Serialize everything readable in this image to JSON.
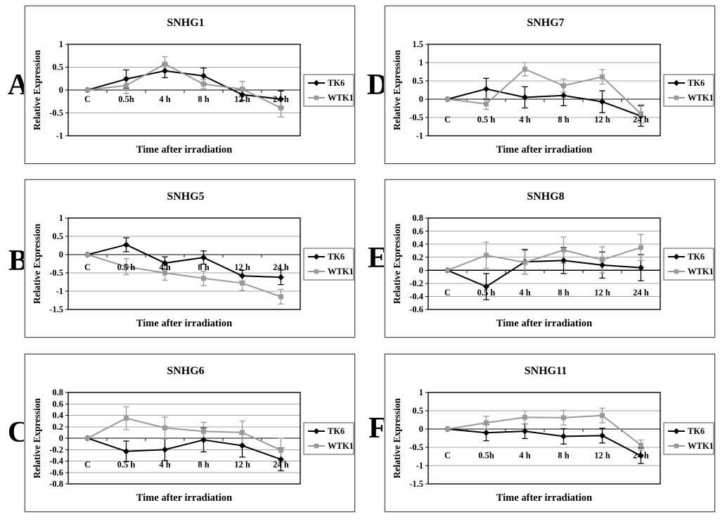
{
  "page": {
    "background": "#ffffff"
  },
  "colors": {
    "tk6": "#000000",
    "wtk1": "#999999",
    "gridline": "#a3a3a3",
    "zero_axis": "#000000",
    "plot_border": "#000000",
    "panel_border": "#4a4a4a",
    "text": "#000000"
  },
  "chart_data": [
    {
      "id": "snhg1",
      "panel_letter": "A",
      "type": "line",
      "title": "SNHG1",
      "xlabel": "Time after irradiation",
      "ylabel": "Relative Expression",
      "categories": [
        "C",
        "0.5h",
        "4 h",
        "8 h",
        "12 h",
        "24 h"
      ],
      "ylim": [
        -1,
        1
      ],
      "yticks": [
        1,
        0.5,
        0,
        -0.5,
        -1
      ],
      "grid": true,
      "legend_position": "right",
      "category_label_y": -0.2,
      "series": [
        {
          "name": "TK6",
          "color": "#000000",
          "marker": "diamond",
          "values": [
            0,
            0.24,
            0.42,
            0.31,
            -0.1,
            -0.2
          ],
          "errors": [
            0,
            0.2,
            0.15,
            0.17,
            0.13,
            0.18
          ]
        },
        {
          "name": "WTK1",
          "color": "#999999",
          "marker": "square",
          "values": [
            0,
            0.1,
            0.57,
            0.13,
            0.02,
            -0.39
          ],
          "errors": [
            0,
            0.18,
            0.16,
            0.1,
            0.17,
            0.2
          ]
        }
      ]
    },
    {
      "id": "snhg5",
      "panel_letter": "B",
      "type": "line",
      "title": "SNHG5",
      "xlabel": "Time after irradiation",
      "ylabel": "Relative Expression",
      "categories": [
        "C",
        "0.5 h",
        "4 h",
        "8 h",
        "12 h",
        "24 h"
      ],
      "ylim": [
        -1.5,
        1
      ],
      "yticks": [
        1,
        0.5,
        0,
        -0.5,
        -1,
        -1.5
      ],
      "grid": true,
      "legend_position": "right",
      "category_label_y": -0.34,
      "series": [
        {
          "name": "TK6",
          "color": "#000000",
          "marker": "diamond",
          "values": [
            0,
            0.27,
            -0.23,
            -0.08,
            -0.58,
            -0.62
          ],
          "errors": [
            0,
            0.19,
            0.17,
            0.18,
            0.15,
            0.2
          ]
        },
        {
          "name": "WTK1",
          "color": "#999999",
          "marker": "square",
          "values": [
            0,
            -0.33,
            -0.5,
            -0.65,
            -0.78,
            -1.15
          ],
          "errors": [
            0,
            0.22,
            0.2,
            0.2,
            0.2,
            0.2
          ]
        }
      ]
    },
    {
      "id": "snhg6",
      "panel_letter": "C",
      "type": "line",
      "title": "SNHG6",
      "xlabel": "Time after irradiation",
      "ylabel": "Relative Expression",
      "categories": [
        "C",
        "0.5 h",
        "4 h",
        "8 h",
        "12 h",
        "24 h"
      ],
      "ylim": [
        -0.8,
        0.8
      ],
      "yticks": [
        0.8,
        0.6,
        0.4,
        0.2,
        0,
        -0.2,
        -0.4,
        -0.6,
        -0.8
      ],
      "grid": true,
      "legend_position": "right",
      "category_label_y": -0.46,
      "series": [
        {
          "name": "TK6",
          "color": "#000000",
          "marker": "diamond",
          "values": [
            0,
            -0.23,
            -0.2,
            -0.03,
            -0.13,
            -0.37
          ],
          "errors": [
            0,
            0.18,
            0.19,
            0.21,
            0.2,
            0.2
          ]
        },
        {
          "name": "WTK1",
          "color": "#999999",
          "marker": "square",
          "values": [
            0,
            0.35,
            0.18,
            0.12,
            0.1,
            -0.21
          ],
          "errors": [
            0,
            0.2,
            0.19,
            0.16,
            0.2,
            0.21
          ]
        }
      ]
    },
    {
      "id": "snhg7",
      "panel_letter": "D",
      "type": "line",
      "title": "SNHG7",
      "xlabel": "Time after irradiation",
      "ylabel": "Relative Expression",
      "categories": [
        "C",
        "0.5 h",
        "4 h",
        "8 h",
        "12 h",
        "24 h"
      ],
      "ylim": [
        -1,
        1.5
      ],
      "yticks": [
        1.5,
        1,
        0.5,
        0,
        -0.5,
        -1
      ],
      "grid": true,
      "legend_position": "right",
      "category_label_y": -0.55,
      "series": [
        {
          "name": "TK6",
          "color": "#000000",
          "marker": "diamond",
          "values": [
            0,
            0.28,
            0.05,
            0.1,
            -0.07,
            -0.46
          ],
          "errors": [
            0,
            0.29,
            0.29,
            0.28,
            0.3,
            0.28
          ]
        },
        {
          "name": "WTK1",
          "color": "#999999",
          "marker": "square",
          "values": [
            0,
            -0.13,
            0.82,
            0.37,
            0.61,
            -0.4
          ],
          "errors": [
            0,
            0.15,
            0.18,
            0.18,
            0.2,
            0.25
          ]
        }
      ]
    },
    {
      "id": "snhg8",
      "panel_letter": "E",
      "type": "line",
      "title": "SNHG8",
      "xlabel": "Time after irradiation",
      "ylabel": "Relative Expression",
      "categories": [
        "C",
        "0.5 h",
        "4 h",
        "8 h",
        "12 h",
        "24 h"
      ],
      "ylim": [
        -0.6,
        0.8
      ],
      "yticks": [
        0.8,
        0.6,
        0.4,
        0.2,
        0,
        -0.2,
        -0.4,
        -0.6
      ],
      "grid": true,
      "legend_position": "right",
      "category_label_y": -0.34,
      "series": [
        {
          "name": "TK6",
          "color": "#000000",
          "marker": "diamond",
          "values": [
            0,
            -0.25,
            0.13,
            0.15,
            0.08,
            0.04
          ],
          "errors": [
            0,
            0.2,
            0.19,
            0.2,
            0.2,
            0.2
          ]
        },
        {
          "name": "WTK1",
          "color": "#999999",
          "marker": "square",
          "values": [
            0,
            0.23,
            0.12,
            0.31,
            0.16,
            0.35
          ],
          "errors": [
            0,
            0.2,
            0.18,
            0.2,
            0.2,
            0.2
          ]
        }
      ]
    },
    {
      "id": "snhg11",
      "panel_letter": "F",
      "type": "line",
      "title": "SNHG11",
      "xlabel": "Time after irradiation",
      "ylabel": "Relative Expression",
      "categories": [
        "C",
        "0.5h",
        "4 h",
        "8 h",
        "12 h",
        "24 h"
      ],
      "ylim": [
        -1.5,
        1
      ],
      "yticks": [
        1,
        0.5,
        0,
        -0.5,
        -1,
        -1.5
      ],
      "grid": true,
      "legend_position": "right",
      "category_label_y": -0.72,
      "series": [
        {
          "name": "TK6",
          "color": "#000000",
          "marker": "diamond",
          "values": [
            0,
            -0.1,
            -0.06,
            -0.2,
            -0.18,
            -0.73
          ],
          "errors": [
            0,
            0.22,
            0.2,
            0.21,
            0.2,
            0.21
          ]
        },
        {
          "name": "WTK1",
          "color": "#999999",
          "marker": "square",
          "values": [
            0,
            0.17,
            0.32,
            0.31,
            0.37,
            -0.44
          ],
          "errors": [
            0,
            0.18,
            0.18,
            0.2,
            0.2,
            0.14
          ]
        }
      ]
    }
  ]
}
